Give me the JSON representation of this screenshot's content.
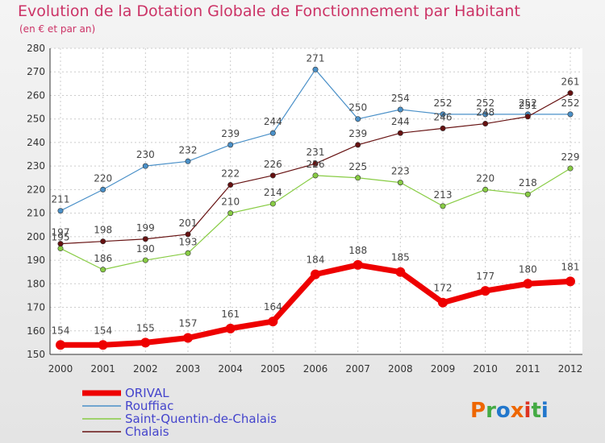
{
  "chart_data": {
    "type": "line",
    "title": "Evolution de la Dotation Globale de Fonctionnement par Habitant",
    "subtitle": "(en € et par an)",
    "x": [
      "2000",
      "2001",
      "2002",
      "2003",
      "2004",
      "2005",
      "2006",
      "2007",
      "2008",
      "2009",
      "2010",
      "2011",
      "2012"
    ],
    "ylim": [
      150,
      280
    ],
    "yticks": [
      150,
      160,
      170,
      180,
      190,
      200,
      210,
      220,
      230,
      240,
      250,
      260,
      270,
      280
    ],
    "grid": true,
    "legend_position": "bottom-left",
    "series": [
      {
        "name": "ORIVAL",
        "color": "#ee0000",
        "values": [
          154,
          154,
          155,
          157,
          161,
          164,
          184,
          188,
          185,
          172,
          177,
          180,
          181
        ]
      },
      {
        "name": "Rouffiac",
        "color": "#4a90c8",
        "values": [
          211,
          220,
          230,
          232,
          239,
          244,
          271,
          250,
          254,
          252,
          252,
          252,
          252
        ]
      },
      {
        "name": "Saint-Quentin-de-Chalais",
        "color": "#88cc44",
        "values": [
          195,
          186,
          190,
          193,
          210,
          214,
          226,
          225,
          223,
          213,
          220,
          218,
          229
        ]
      },
      {
        "name": "Chalais",
        "color": "#661111",
        "values": [
          197,
          198,
          199,
          201,
          222,
          226,
          231,
          239,
          244,
          246,
          248,
          251,
          261
        ]
      }
    ]
  },
  "logo": {
    "text": "Proxiti",
    "colors": [
      "#ee6600",
      "#44aa44",
      "#2277cc",
      "#ee6600",
      "#dd3322",
      "#44aa44",
      "#2277cc"
    ]
  }
}
